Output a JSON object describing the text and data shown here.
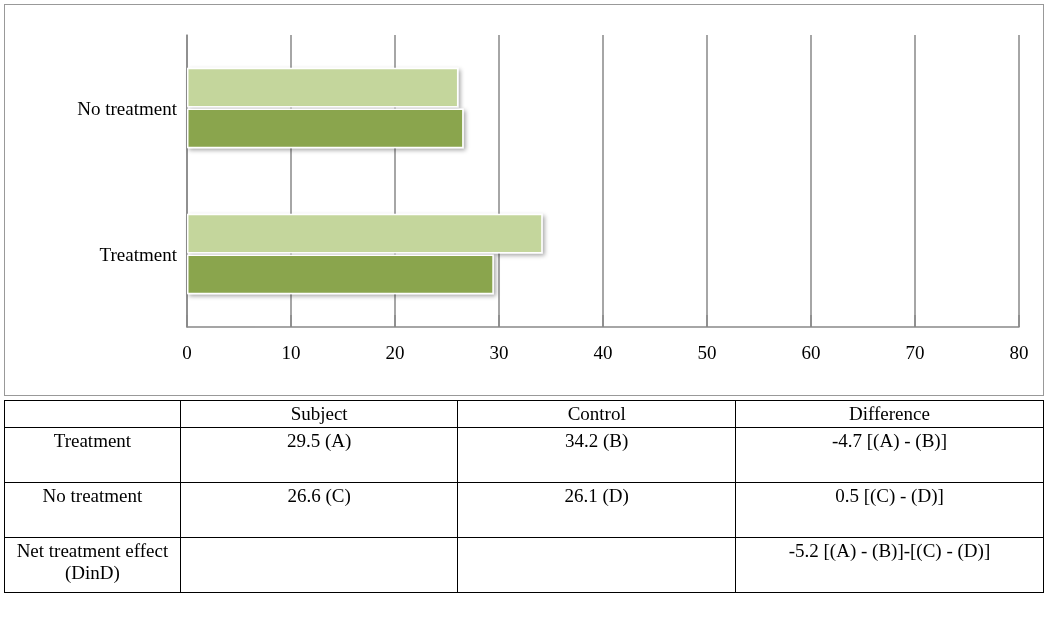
{
  "chart_data": {
    "type": "bar",
    "orientation": "horizontal",
    "categories": [
      "No treatment",
      "Treatment"
    ],
    "series": [
      {
        "color": "#8aa54e",
        "values": [
          26.6,
          29.5
        ]
      },
      {
        "color": "#c4d69c",
        "values": [
          26.1,
          34.2
        ]
      }
    ],
    "xlim": [
      0,
      80
    ],
    "xticks": [
      0,
      10,
      20,
      30,
      40,
      50,
      60,
      70,
      80
    ],
    "grid": "x",
    "annotations": [
      "Subject",
      "Control",
      "Difference",
      "Treatment",
      "29.5 (A)",
      "34.2 (B)",
      "-4.7 [(A) - (B)]",
      "No treatment",
      "26.6 (C)",
      "26.1 (D)",
      "0.5 [(C) - (D)]",
      "Net treatment effect (DinD)",
      "-5.2 [(A) - (B)]-[(C) - (D)]"
    ]
  }
}
